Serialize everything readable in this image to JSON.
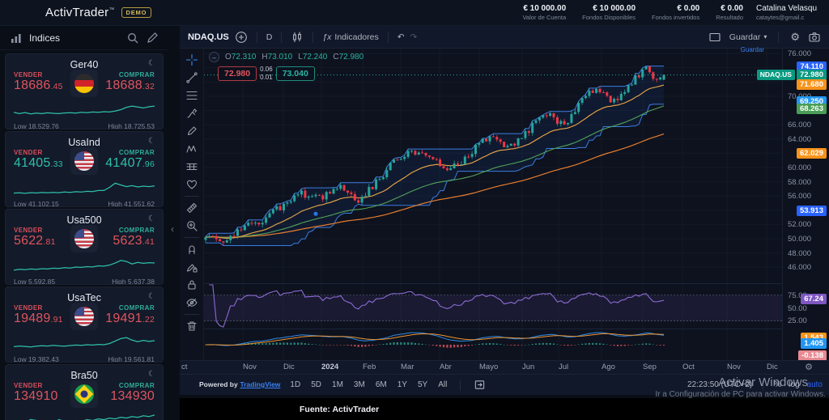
{
  "topbar": {
    "logo": "ActivTrader",
    "logo_tm": "™",
    "demo_badge": "DEMO",
    "stats": [
      {
        "value": "€ 10 000.00",
        "label": "Valor de Cuenta"
      },
      {
        "value": "€ 10 000.00",
        "label": "Fondos Disponibles"
      },
      {
        "value": "€ 0.00",
        "label": "Fondos invertidos"
      },
      {
        "value": "€ 0.00",
        "label": "Resultado"
      }
    ],
    "user": {
      "name": "Catalina Velasqu",
      "email": "cataytes@gmail.c"
    }
  },
  "sidebar": {
    "title": "Indices",
    "instruments": [
      {
        "name": "Ger40",
        "flag": "de",
        "sell_label": "VENDER",
        "buy_label": "COMPRAR",
        "sell_int": "18686",
        "sell_dec": ".45",
        "sell_dir": "down",
        "buy_int": "18688",
        "buy_dec": ".32",
        "buy_dir": "down",
        "low": "Low 18,529.76",
        "high": "High 18,725.53",
        "spark": [
          0.38,
          0.3,
          0.36,
          0.28,
          0.33,
          0.3,
          0.35,
          0.32,
          0.3,
          0.34,
          0.36,
          0.33,
          0.38,
          0.36,
          0.4,
          0.38,
          0.42,
          0.4,
          0.46,
          0.55,
          0.7,
          0.78,
          0.72,
          0.66,
          0.74,
          0.78
        ]
      },
      {
        "name": "UsaInd",
        "flag": "us",
        "sell_label": "VENDER",
        "buy_label": "COMPRAR",
        "sell_int": "41405",
        "sell_dec": ".33",
        "sell_dir": "up",
        "buy_int": "41407",
        "buy_dec": ".96",
        "buy_dir": "up",
        "low": "Low 41,102.15",
        "high": "High 41,551.62",
        "spark": [
          0.18,
          0.2,
          0.17,
          0.21,
          0.19,
          0.22,
          0.2,
          0.23,
          0.21,
          0.25,
          0.23,
          0.27,
          0.25,
          0.3,
          0.28,
          0.35,
          0.35,
          0.55,
          0.82,
          0.7,
          0.6,
          0.66,
          0.58,
          0.63,
          0.6,
          0.64
        ]
      },
      {
        "name": "Usa500",
        "flag": "us",
        "sell_label": "VENDER",
        "buy_label": "COMPRAR",
        "sell_int": "5622",
        "sell_dec": ".81",
        "sell_dir": "down",
        "buy_int": "5623",
        "buy_dec": ".41",
        "buy_dir": "down",
        "low": "Low 5,592.85",
        "high": "High 5,637.38",
        "spark": [
          0.22,
          0.28,
          0.25,
          0.3,
          0.27,
          0.32,
          0.3,
          0.35,
          0.33,
          0.38,
          0.36,
          0.42,
          0.4,
          0.45,
          0.43,
          0.5,
          0.48,
          0.55,
          0.68,
          0.85,
          0.78,
          0.62,
          0.72,
          0.66,
          0.7,
          0.68
        ]
      },
      {
        "name": "UsaTec",
        "flag": "us",
        "sell_label": "VENDER",
        "buy_label": "COMPRAR",
        "sell_int": "19489",
        "sell_dec": ".91",
        "sell_dir": "down",
        "buy_int": "19491",
        "buy_dec": ".22",
        "buy_dir": "down",
        "low": "Low 19,382.43",
        "high": "High 19,561.81",
        "spark": [
          0.3,
          0.34,
          0.31,
          0.28,
          0.33,
          0.36,
          0.34,
          0.38,
          0.35,
          0.33,
          0.37,
          0.4,
          0.38,
          0.42,
          0.4,
          0.44,
          0.42,
          0.5,
          0.66,
          0.82,
          0.88,
          0.72,
          0.62,
          0.7,
          0.64,
          0.68
        ]
      },
      {
        "name": "Bra50",
        "flag": "br",
        "sell_label": "VENDER",
        "buy_label": "COMPRAR",
        "sell_int": "134910",
        "sell_dec": "",
        "sell_dir": "down",
        "buy_int": "134930",
        "buy_dec": "",
        "buy_dir": "down",
        "low": "",
        "high": "",
        "spark": [
          0.05,
          0.25,
          0.45,
          0.6,
          0.55,
          0.35,
          0.2,
          0.4,
          0.6,
          0.5,
          0.45,
          0.55,
          0.5,
          0.6,
          0.55,
          0.65,
          0.6,
          0.7,
          0.65,
          0.75,
          0.7,
          0.8,
          0.75,
          0.85,
          0.8,
          0.9
        ]
      }
    ]
  },
  "chart": {
    "symbol": "NDAQ.US",
    "interval": "D",
    "fx_label": "ƒx",
    "indicators_label": "Indicadores",
    "save_label": "Guardar",
    "save_tooltip": "Guardar",
    "legend_items": [
      {
        "k": "O",
        "v": "72.310"
      },
      {
        "k": "H",
        "v": "73.010"
      },
      {
        "k": "L",
        "v": "72.240"
      },
      {
        "k": "C",
        "v": "72.980"
      }
    ],
    "quote": {
      "bid": "72.980",
      "spread_top": "0.06",
      "spread_bottom": "0.01",
      "ask": "73.040"
    },
    "draw_tools": [
      "crosshair",
      "trend-line",
      "fib-retracement",
      "brush",
      "pen",
      "xabcd-pattern",
      "long-position",
      "emoji",
      "|",
      "ruler",
      "zoom-in",
      "|",
      "magnet",
      "drawing-mode",
      "lock",
      "hide-drawings",
      "|",
      "remove-drawings"
    ],
    "y_ticks": [
      {
        "p": 76,
        "label": "76.000"
      },
      {
        "p": 70,
        "label": "70.000"
      },
      {
        "p": 66,
        "label": "66.000"
      },
      {
        "p": 64,
        "label": "64.000"
      },
      {
        "p": 60,
        "label": "60.000"
      },
      {
        "p": 58,
        "label": "58.000"
      },
      {
        "p": 56,
        "label": "56.000"
      },
      {
        "p": 52,
        "label": "52.000"
      },
      {
        "p": 50,
        "label": "50.000"
      },
      {
        "p": 48,
        "label": "48.000"
      },
      {
        "p": 46,
        "label": "46.000"
      }
    ],
    "axis_badges": [
      {
        "value": "74.110",
        "p": 74.11,
        "color": "#2962ff"
      },
      {
        "value": "72.980",
        "p": 72.98,
        "color": "#0a9981",
        "tag": "NDAQ.US"
      },
      {
        "value": "71.680",
        "p": 71.68,
        "color": "#f7931a"
      },
      {
        "value": "69.250",
        "p": 69.25,
        "color": "#2196f3"
      },
      {
        "value": "68.263",
        "p": 68.263,
        "color": "#4a9e57"
      },
      {
        "value": "62.029",
        "p": 62.029,
        "color": "#f7931a"
      },
      {
        "value": "53.913",
        "p": 53.913,
        "color": "#2962ff"
      }
    ],
    "rsi_ticks": [
      {
        "v": 75,
        "label": "75.00"
      },
      {
        "v": 50,
        "label": "50.00"
      },
      {
        "v": 25,
        "label": "25.00"
      }
    ],
    "rsi_badge": {
      "v": 67.24,
      "value": "67.24",
      "color": "#7e57c2"
    },
    "macd_badges": [
      {
        "value": "1.543",
        "color": "#f7931a"
      },
      {
        "value": "1.405",
        "color": "#2196f3"
      },
      {
        "value": "-0.138",
        "color": "#e88a92"
      }
    ]
  },
  "chart_data": {
    "type": "candlestick",
    "symbol": "NDAQ.US",
    "interval": "D",
    "visible_range": {
      "from": "Oct 2023",
      "to": "Dec 2024"
    },
    "y_axis": {
      "min": 44,
      "max": 76.7,
      "tick_step": 2
    },
    "x_labels": [
      "ct",
      "Nov",
      "Dic",
      "2024",
      "Feb",
      "Mar",
      "Abr",
      "Mayo",
      "Jun",
      "Jul",
      "Ago",
      "Sep",
      "Oct",
      "Nov",
      "Dic"
    ],
    "ohlc_last": {
      "open": 72.31,
      "high": 73.01,
      "low": 72.24,
      "close": 72.98
    },
    "bid": 72.98,
    "ask": 73.04,
    "candle_count": 130,
    "close_trend_anchors": [
      [
        0,
        50.6
      ],
      [
        0.03,
        49.6
      ],
      [
        0.07,
        51.2
      ],
      [
        0.12,
        52.4
      ],
      [
        0.17,
        54.8
      ],
      [
        0.21,
        56.4
      ],
      [
        0.25,
        55.6
      ],
      [
        0.29,
        57.6
      ],
      [
        0.33,
        55.2
      ],
      [
        0.37,
        57.8
      ],
      [
        0.41,
        60.8
      ],
      [
        0.45,
        62.2
      ],
      [
        0.49,
        61.2
      ],
      [
        0.53,
        59.8
      ],
      [
        0.57,
        61.4
      ],
      [
        0.6,
        63.6
      ],
      [
        0.63,
        64.6
      ],
      [
        0.66,
        62.8
      ],
      [
        0.69,
        64.2
      ],
      [
        0.72,
        66.4
      ],
      [
        0.75,
        67.6
      ],
      [
        0.78,
        65.8
      ],
      [
        0.81,
        68.4
      ],
      [
        0.84,
        70.6
      ],
      [
        0.86,
        70.9
      ],
      [
        0.885,
        68.9
      ],
      [
        0.91,
        70.6
      ],
      [
        0.935,
        72.2
      ],
      [
        0.96,
        74.0
      ],
      [
        0.985,
        72.3
      ],
      [
        1,
        72.98
      ]
    ],
    "indicators": {
      "donchian_channel": {
        "window": 20,
        "upper_last": 74.11,
        "lower_last": 69.25,
        "color": "#3b7de0"
      },
      "ema20": {
        "last": 71.68,
        "color": "#f0a848"
      },
      "ema50": {
        "last": 68.263,
        "color": "#53a35a"
      },
      "ema100": {
        "last": 62.029,
        "color": "#e87d2f"
      },
      "rsi": {
        "period": 14,
        "last": 67.24,
        "upper_band": 75,
        "lower_band": 25,
        "color": "#8e6bd6"
      },
      "macd": {
        "macd_last": 1.405,
        "signal_last": 1.543,
        "hist_last": -0.138
      }
    }
  },
  "bottom": {
    "powered_by": "Powered by",
    "tradingview": "TradingView",
    "ranges": [
      "1D",
      "5D",
      "1M",
      "3M",
      "6M",
      "1Y",
      "5Y",
      "All"
    ],
    "clock": "22:23:50 (UTC+2)",
    "percent": "%",
    "log": "log",
    "auto": "auto"
  },
  "watermark": {
    "line1": "Activar Windows",
    "line2": "Ir a Configuración de PC para activar Windows."
  },
  "footer": {
    "text": "Fuente: ActivTrader"
  }
}
